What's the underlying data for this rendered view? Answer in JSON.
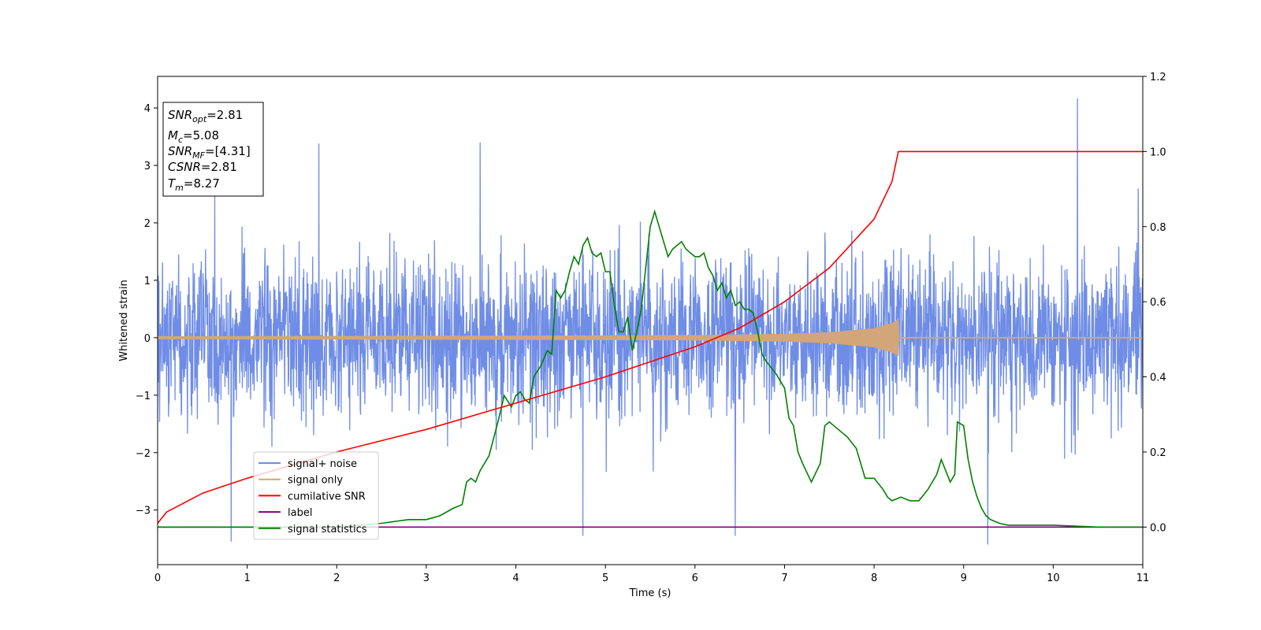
{
  "chart_data": {
    "type": "line",
    "xlabel": "Time (s)",
    "ylabel": "Whitened strain",
    "xlim": [
      0,
      11
    ],
    "ylim": [
      -3.95,
      4.55
    ],
    "y2lim": [
      -0.1,
      1.2
    ],
    "x_ticks": [
      "0",
      "1",
      "2",
      "3",
      "4",
      "5",
      "6",
      "7",
      "8",
      "9",
      "10",
      "11"
    ],
    "y_ticks": [
      "−3",
      "−2",
      "−1",
      "0",
      "1",
      "2",
      "3",
      "4"
    ],
    "y2_ticks": [
      "0.0",
      "0.2",
      "0.4",
      "0.6",
      "0.8",
      "1.0",
      "1.2"
    ],
    "grid": false,
    "legend_position": "lower-left",
    "colors": {
      "noise": "#6f8de6",
      "signal": "#d2a679",
      "cumulative": "#ff0000",
      "label": "#800080",
      "statistics": "#008000"
    },
    "series": [
      {
        "name": "signal+ noise",
        "axis": "left",
        "description_of_values": "dense noise, approx range",
        "envelope_typical": [
          -1.9,
          2.1
        ],
        "spikes": [
          {
            "x": 0.82,
            "y": -3.55
          },
          {
            "x": 1.8,
            "y": 3.38
          },
          {
            "x": 3.6,
            "y": 3.4
          },
          {
            "x": 4.75,
            "y": -3.45
          },
          {
            "x": 6.45,
            "y": -3.45
          },
          {
            "x": 9.27,
            "y": -3.6
          },
          {
            "x": 10.27,
            "y": 4.17
          },
          {
            "x": 10.95,
            "y": 2.6
          }
        ]
      },
      {
        "name": "signal only",
        "axis": "left",
        "description_of_values": "chirp amplitude envelope",
        "x": [
          0,
          4,
          6,
          7,
          7.5,
          8,
          8.2,
          8.27,
          8.28,
          11
        ],
        "y": [
          0.02,
          0.03,
          0.04,
          0.06,
          0.09,
          0.16,
          0.25,
          0.31,
          0,
          0
        ]
      },
      {
        "name": "cumilative SNR",
        "axis": "right",
        "x": [
          0,
          0.1,
          0.5,
          1,
          2,
          3,
          4,
          5,
          6,
          6.5,
          7,
          7.5,
          8,
          8.2,
          8.27,
          11
        ],
        "y": [
          0.01,
          0.04,
          0.09,
          0.13,
          0.2,
          0.26,
          0.33,
          0.4,
          0.48,
          0.53,
          0.6,
          0.69,
          0.82,
          0.92,
          1.0,
          1.0
        ]
      },
      {
        "name": "label",
        "axis": "right",
        "x": [
          0,
          11
        ],
        "y": [
          0,
          0
        ]
      },
      {
        "name": "signal statistics",
        "axis": "right",
        "x": [
          0,
          1,
          2,
          2.5,
          2.8,
          3,
          3.15,
          3.3,
          3.4,
          3.45,
          3.5,
          3.55,
          3.6,
          3.7,
          3.8,
          3.87,
          3.95,
          4.0,
          4.05,
          4.1,
          4.15,
          4.2,
          4.28,
          4.35,
          4.4,
          4.45,
          4.5,
          4.55,
          4.6,
          4.65,
          4.7,
          4.75,
          4.8,
          4.85,
          4.9,
          4.95,
          5.0,
          5.05,
          5.1,
          5.15,
          5.2,
          5.25,
          5.3,
          5.35,
          5.4,
          5.5,
          5.55,
          5.6,
          5.65,
          5.7,
          5.75,
          5.8,
          5.85,
          5.9,
          5.95,
          6.0,
          6.05,
          6.1,
          6.15,
          6.2,
          6.25,
          6.3,
          6.35,
          6.4,
          6.45,
          6.5,
          6.55,
          6.6,
          6.65,
          6.7,
          6.75,
          6.8,
          6.9,
          7.0,
          7.05,
          7.1,
          7.15,
          7.2,
          7.3,
          7.4,
          7.45,
          7.5,
          7.6,
          7.7,
          7.8,
          7.9,
          8.0,
          8.1,
          8.15,
          8.2,
          8.3,
          8.4,
          8.5,
          8.6,
          8.7,
          8.75,
          8.8,
          8.85,
          8.9,
          8.93,
          9.0,
          9.05,
          9.1,
          9.15,
          9.2,
          9.25,
          9.3,
          9.4,
          9.5,
          10.0,
          10.5,
          11
        ],
        "y": [
          0.0,
          0.0,
          0.0,
          0.01,
          0.02,
          0.02,
          0.03,
          0.05,
          0.06,
          0.12,
          0.13,
          0.12,
          0.15,
          0.19,
          0.28,
          0.35,
          0.32,
          0.35,
          0.36,
          0.34,
          0.33,
          0.4,
          0.43,
          0.47,
          0.46,
          0.63,
          0.61,
          0.63,
          0.68,
          0.72,
          0.7,
          0.75,
          0.77,
          0.73,
          0.72,
          0.73,
          0.68,
          0.68,
          0.59,
          0.52,
          0.52,
          0.56,
          0.47,
          0.52,
          0.58,
          0.8,
          0.84,
          0.8,
          0.76,
          0.72,
          0.74,
          0.75,
          0.76,
          0.74,
          0.73,
          0.72,
          0.72,
          0.73,
          0.69,
          0.67,
          0.63,
          0.65,
          0.61,
          0.63,
          0.59,
          0.6,
          0.58,
          0.58,
          0.57,
          0.52,
          0.46,
          0.44,
          0.41,
          0.37,
          0.29,
          0.27,
          0.2,
          0.17,
          0.12,
          0.17,
          0.27,
          0.28,
          0.26,
          0.24,
          0.21,
          0.13,
          0.13,
          0.1,
          0.08,
          0.07,
          0.08,
          0.07,
          0.07,
          0.1,
          0.14,
          0.18,
          0.15,
          0.12,
          0.14,
          0.28,
          0.27,
          0.18,
          0.12,
          0.08,
          0.05,
          0.03,
          0.02,
          0.01,
          0.005,
          0.005,
          0.0,
          0.0
        ]
      }
    ],
    "annotation": {
      "snr_opt": "2.81",
      "mc": "5.08",
      "snr_mf": "[4.31]",
      "csnr": "2.81",
      "tm": "8.27"
    }
  }
}
